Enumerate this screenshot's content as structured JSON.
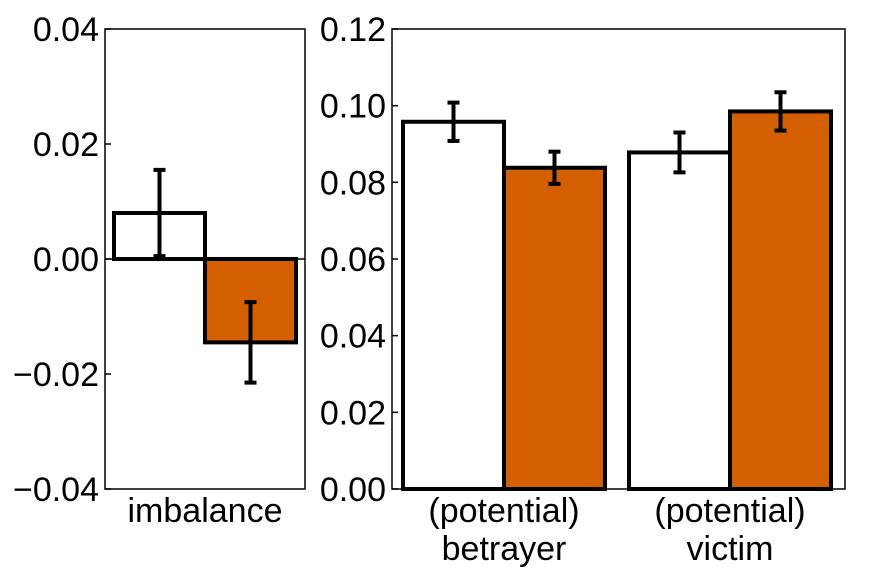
{
  "colors": {
    "series_a": "#ffffff",
    "series_b": "#d45f00",
    "stroke": "#000000"
  },
  "chart_data": [
    {
      "type": "bar",
      "categories": [
        "imbalance"
      ],
      "series": [
        {
          "color": "#ffffff",
          "values": [
            0.008
          ],
          "errors": [
            0.0075
          ]
        },
        {
          "color": "#d45f00",
          "values": [
            -0.0145
          ],
          "errors": [
            0.007
          ]
        }
      ],
      "ylim": [
        -0.04,
        0.04
      ],
      "yticks": [
        -0.04,
        -0.02,
        0.0,
        0.02,
        0.04
      ],
      "ytick_labels": [
        "−0.04",
        "−0.02",
        "0.00",
        "0.02",
        "0.04"
      ],
      "zero_line": true
    },
    {
      "type": "bar",
      "categories": [
        "(potential)\nbetrayer",
        "(potential)\nvictim"
      ],
      "series": [
        {
          "color": "#ffffff",
          "values": [
            0.0958,
            0.0878
          ],
          "errors": [
            0.005,
            0.0052
          ]
        },
        {
          "color": "#d45f00",
          "values": [
            0.0838,
            0.0985
          ],
          "errors": [
            0.0042,
            0.005
          ]
        }
      ],
      "ylim": [
        0.0,
        0.12
      ],
      "yticks": [
        0.0,
        0.02,
        0.04,
        0.06,
        0.08,
        0.1,
        0.12
      ],
      "ytick_labels": [
        "0.00",
        "0.02",
        "0.04",
        "0.06",
        "0.08",
        "0.10",
        "0.12"
      ]
    }
  ]
}
